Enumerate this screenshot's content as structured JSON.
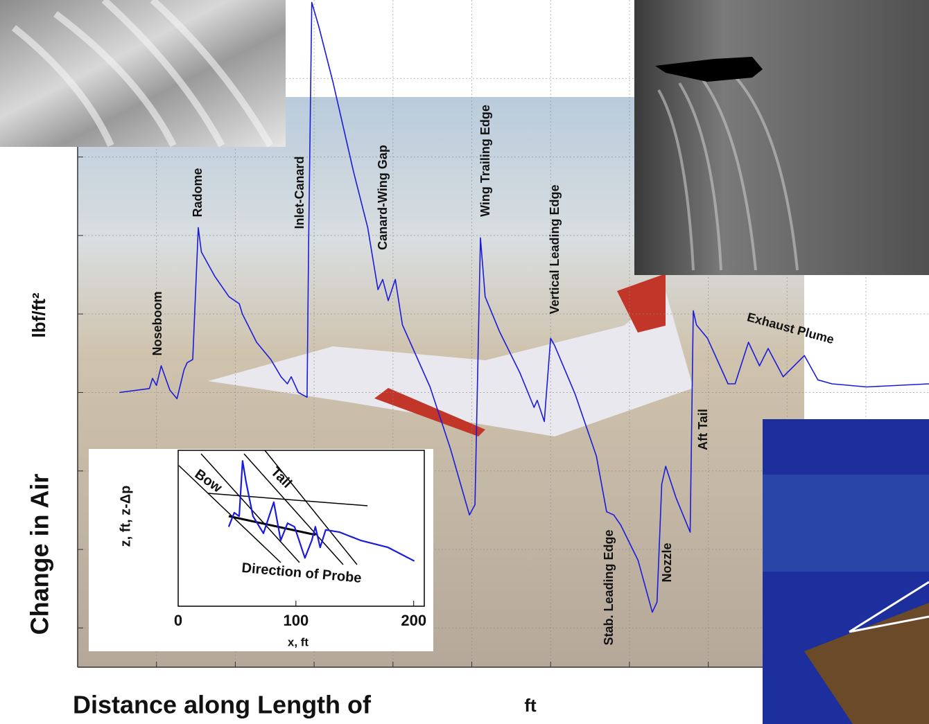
{
  "chart_data": [
    {
      "type": "line",
      "y_label": "Change in Air",
      "y_unit": "lbf/ft²",
      "x_label": "Distance along Length of",
      "x_unit": "ft",
      "annotations": [
        "Noseboom",
        "Radome",
        "Inlet-Canard",
        "Canard-Wing Gap",
        "Wing Trailing Edge",
        "Vertical Leading Edge",
        "Stab. Leading Edge",
        "Nozzle",
        "Aft Tail",
        "Exhaust Plume"
      ],
      "color": "#1a1adc",
      "xlim": [
        0,
        10.8
      ],
      "ylim": [
        -3.5,
        5
      ],
      "xticks": [
        1,
        2,
        3,
        4,
        5,
        6,
        7,
        8,
        9,
        10
      ],
      "yticks": [
        -3,
        -2,
        -1,
        0,
        1,
        2,
        3,
        4
      ],
      "grid": true,
      "x": [
        0.53,
        0.91,
        0.95,
        1.0,
        1.06,
        1.17,
        1.26,
        1.35,
        1.39,
        1.46,
        1.53,
        1.57,
        1.74,
        1.92,
        2.05,
        2.09,
        2.27,
        2.45,
        2.58,
        2.66,
        2.71,
        2.8,
        2.91,
        2.93,
        2.97,
        3.06,
        3.24,
        3.5,
        3.68,
        3.81,
        3.87,
        3.94,
        4.03,
        4.12,
        4.47,
        4.73,
        4.97,
        5.04,
        5.11,
        5.17,
        5.35,
        5.61,
        5.79,
        5.83,
        5.92,
        6.0,
        6.05,
        6.31,
        6.58,
        6.71,
        6.8,
        6.89,
        7.11,
        7.29,
        7.35,
        7.41,
        7.46,
        7.59,
        7.77,
        7.81,
        7.85,
        7.99,
        8.25,
        8.34,
        8.51,
        8.65,
        8.76,
        8.95,
        9.22,
        9.39,
        9.57,
        10.01,
        10.8
      ],
      "values": [
        0,
        0.05,
        0.18,
        0.09,
        0.34,
        0.03,
        -0.08,
        0.29,
        0.38,
        0.42,
        2.1,
        1.79,
        1.48,
        1.22,
        1.13,
        1.0,
        0.64,
        0.42,
        0.2,
        0.11,
        0.2,
        0,
        -0.06,
        1.92,
        4.97,
        4.66,
        3.95,
        2.81,
        2.1,
        1.31,
        1.44,
        1.17,
        1.44,
        0.86,
        0.07,
        -0.72,
        -1.56,
        -1.43,
        1.97,
        1.22,
        0.78,
        0.25,
        -0.19,
        -0.1,
        -0.37,
        0.69,
        0.6,
        -0.02,
        -0.81,
        -1.52,
        -1.56,
        -1.69,
        -2.14,
        -2.8,
        -2.67,
        -1.17,
        -0.94,
        -1.34,
        -1.78,
        1.04,
        0.86,
        0.69,
        0.11,
        0.11,
        0.64,
        0.34,
        0.56,
        0.2,
        0.47,
        0.16,
        0.11,
        0.07,
        0.11
      ]
    },
    {
      "type": "line",
      "y_label": "z, ft,   z-Δp",
      "x_label": "x, ft",
      "annotations": [
        "Bow",
        "Tail",
        "Direction of Probe"
      ],
      "color": "#1a1adc",
      "xlim": [
        0,
        209
      ],
      "ylim": [
        0,
        4
      ],
      "xticks": [
        0,
        100,
        200
      ],
      "x": [
        42.9,
        47.6,
        51.8,
        54.7,
        57.6,
        63.5,
        72.4,
        81.2,
        87.1,
        92.9,
        98.8,
        107.6,
        113.5,
        116.5,
        120.6,
        125.3,
        137.1,
        154.7,
        178.2,
        200.6
      ],
      "values": [
        2.04,
        2.4,
        2.31,
        3.73,
        3.2,
        2.31,
        1.87,
        2.67,
        1.69,
        2.13,
        2.04,
        1.24,
        1.69,
        2.04,
        1.51,
        1.96,
        1.9,
        1.69,
        1.51,
        1.16
      ]
    }
  ]
}
